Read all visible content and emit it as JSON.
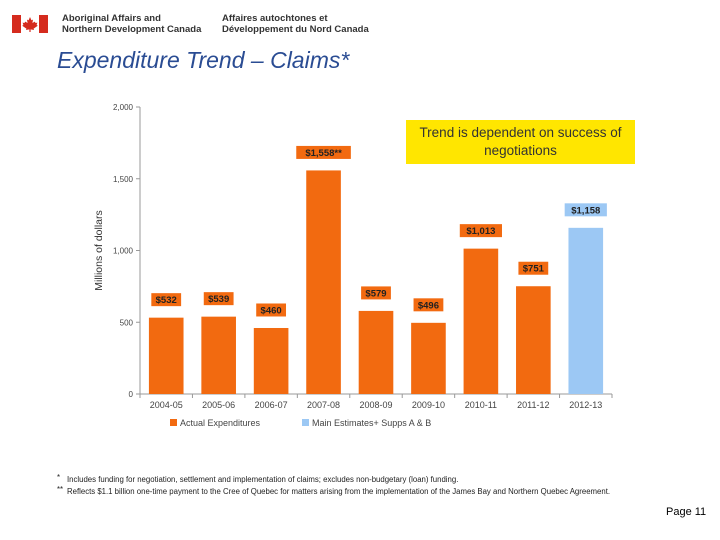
{
  "header": {
    "org_en_line1": "Aboriginal Affairs and",
    "org_en_line2": "Northern Development Canada",
    "org_fr_line1": "Affaires autochtones et",
    "org_fr_line2": "Développement du Nord Canada",
    "flag_icon": "canada-flag-icon",
    "flag_color": "#d52b1e"
  },
  "title": "Expenditure Trend – Claims*",
  "callout": "Trend is dependent on success of negotiations",
  "chart_data": {
    "type": "bar",
    "ylabel": "Millions of dollars",
    "ylim": [
      0,
      2000
    ],
    "yticks": [
      0,
      500,
      1000,
      1500,
      2000
    ],
    "ytick_labels": [
      "0",
      "500",
      "1,000",
      "1,500",
      "2,000"
    ],
    "categories": [
      "2004-05",
      "2005-06",
      "2006-07",
      "2007-08",
      "2008-09",
      "2009-10",
      "2010-11",
      "2011-12",
      "2012-13"
    ],
    "values": [
      532,
      539,
      460,
      1558,
      579,
      496,
      1013,
      751,
      1158
    ],
    "data_labels": [
      "$532",
      "$539",
      "$460",
      "$1,558**",
      "$579",
      "$496",
      "$1,013",
      "$751",
      "$1,158"
    ],
    "series_index": [
      0,
      0,
      0,
      0,
      0,
      0,
      0,
      0,
      1
    ],
    "series": [
      {
        "name": "Actual Expenditures",
        "color": "#f26a10"
      },
      {
        "name": "Main Estimates+ Supps A & B",
        "color": "#9cc8f4"
      }
    ],
    "grid": false,
    "legend": "bottom"
  },
  "footnotes": [
    {
      "mark": "*",
      "text": "Includes funding for negotiation, settlement and implementation of claims; excludes non-budgetary (loan) funding."
    },
    {
      "mark": "**",
      "text": "Reflects $1.1 billion one-time payment to the Cree of Quebec for matters arising from the implementation of the James Bay and  Northern Quebec Agreement."
    }
  ],
  "page_label": "Page 11"
}
